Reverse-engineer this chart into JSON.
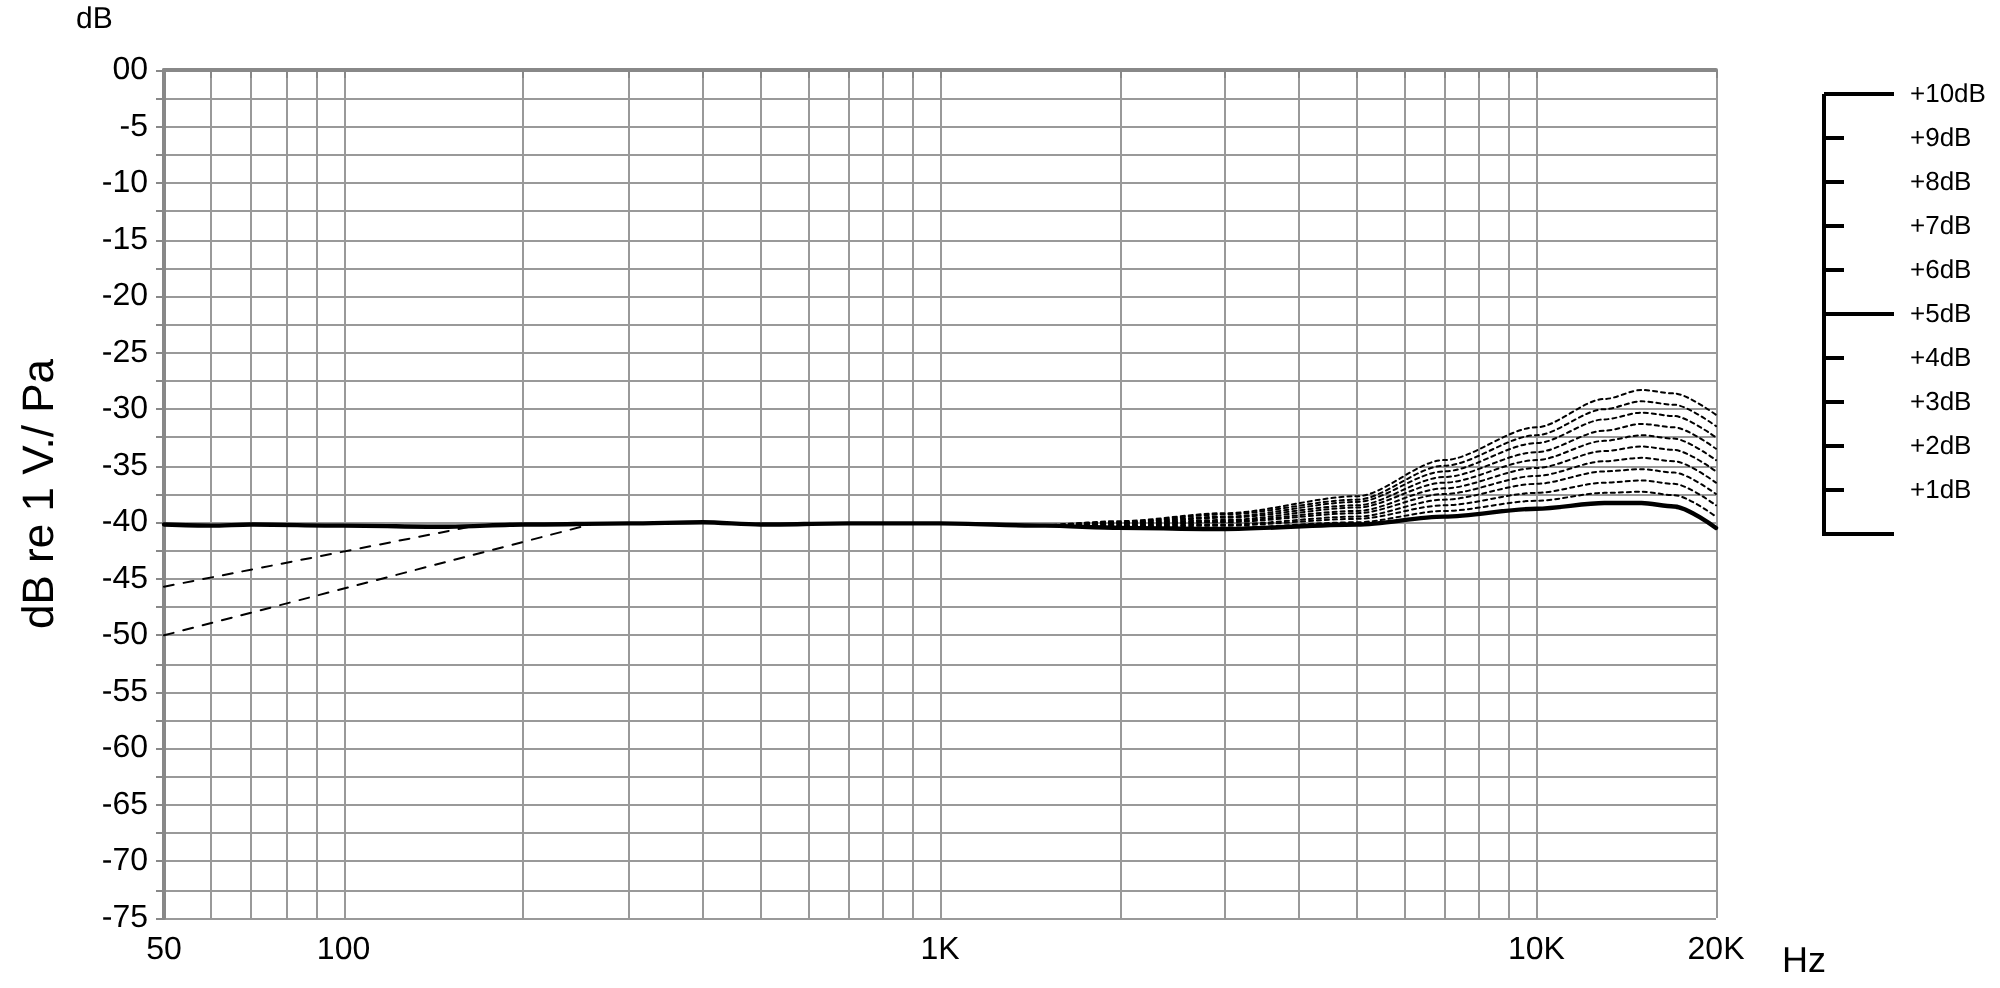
{
  "chart_data": {
    "type": "line",
    "xlabel": "Hz",
    "ylabel": "dB re 1 V./ Pa",
    "annotations": [
      "dB",
      "+10dB",
      "+9dB",
      "+8dB",
      "+7dB",
      "+6dB",
      "+5dB",
      "+4dB",
      "+3dB",
      "+2dB",
      "+1dB"
    ],
    "log": "x",
    "grid": true,
    "marker": "none",
    "xlim": [
      50,
      20000
    ],
    "ylim": [
      -75,
      0
    ],
    "xticks": [
      50,
      {
        "value": 60,
        "label": null
      },
      {
        "value": 70,
        "label": null
      },
      {
        "value": 80,
        "label": null
      },
      {
        "value": 90,
        "label": null
      },
      100,
      {
        "value": 200,
        "label": null
      },
      {
        "value": 300,
        "label": null
      },
      {
        "value": 400,
        "label": null
      },
      {
        "value": 500,
        "label": null
      },
      {
        "value": 600,
        "label": null
      },
      {
        "value": 700,
        "label": null
      },
      {
        "value": 800,
        "label": null
      },
      {
        "value": 900,
        "label": null
      },
      {
        "value": 1000,
        "label": "1K"
      },
      {
        "value": 2000,
        "label": null
      },
      {
        "value": 3000,
        "label": null
      },
      {
        "value": 4000,
        "label": null
      },
      {
        "value": 5000,
        "label": null
      },
      {
        "value": 6000,
        "label": null
      },
      {
        "value": 7000,
        "label": null
      },
      {
        "value": 8000,
        "label": null
      },
      {
        "value": 9000,
        "label": null
      },
      {
        "value": 10000,
        "label": "10K"
      },
      {
        "value": 20000,
        "label": "20K"
      }
    ],
    "yticks": [
      {
        "value": 0,
        "label": "00"
      },
      {
        "value": -2.5,
        "label": null
      },
      -5,
      {
        "value": -7.5,
        "label": null
      },
      -10,
      {
        "value": -12.5,
        "label": null
      },
      -15,
      {
        "value": -17.5,
        "label": null
      },
      -20,
      {
        "value": -22.5,
        "label": null
      },
      -25,
      {
        "value": -27.5,
        "label": null
      },
      -30,
      {
        "value": -32.5,
        "label": null
      },
      -35,
      {
        "value": -37.5,
        "label": null
      },
      -40,
      {
        "value": -42.5,
        "label": null
      },
      -45,
      {
        "value": -47.5,
        "label": null
      },
      -50,
      {
        "value": -52.5,
        "label": null
      },
      -55,
      {
        "value": -57.5,
        "label": null
      },
      -60,
      {
        "value": -62.5,
        "label": null
      },
      -65,
      {
        "value": -67.5,
        "label": null
      },
      -70,
      {
        "value": -72.5,
        "label": null
      },
      -75
    ],
    "series": [
      {
        "color": "#000000",
        "line_style": "solid",
        "x": [
          50,
          60,
          70,
          100,
          150,
          200,
          300,
          400,
          500,
          700,
          1000,
          1500,
          2000,
          3000,
          5000,
          7000,
          10000,
          13000,
          15000,
          17000,
          20000
        ],
        "values": [
          -40.2,
          -40.3,
          -40.2,
          -40.3,
          -40.4,
          -40.2,
          -40.1,
          -40,
          -40.2,
          -40.1,
          -40.1,
          -40.3,
          -40.5,
          -40.6,
          -40.2,
          -39.5,
          -38.8,
          -38.3,
          -38.3,
          -38.6,
          -40.5
        ]
      },
      {
        "color": "#000000",
        "line_style": "dashed",
        "x": [
          50,
          163
        ],
        "values": [
          -45.7,
          -40.4
        ]
      },
      {
        "color": "#000000",
        "line_style": "dashed",
        "x": [
          50,
          259
        ],
        "values": [
          -50,
          -40.2
        ]
      },
      {
        "color": "#000000",
        "line_style": "dotted",
        "x": [
          1500,
          2000,
          3000,
          5000,
          7000,
          10000,
          13000,
          15000,
          17000,
          20000
        ],
        "values": [
          -40.3,
          -40.4,
          -40.5,
          -40.0,
          -39.0,
          -38.1,
          -37.4,
          -37.3,
          -37.6,
          -39.5
        ]
      },
      {
        "color": "#000000",
        "line_style": "dotted",
        "x": [
          1500,
          2000,
          3000,
          5000,
          7000,
          10000,
          13000,
          15000,
          17000,
          20000
        ],
        "values": [
          -40.3,
          -40.4,
          -40.3,
          -39.7,
          -38.5,
          -37.4,
          -36.5,
          -36.3,
          -36.6,
          -38.5
        ]
      },
      {
        "color": "#000000",
        "line_style": "dotted",
        "x": [
          1500,
          2000,
          3000,
          5000,
          7000,
          10000,
          13000,
          15000,
          17000,
          20000
        ],
        "values": [
          -40.3,
          -40.3,
          -40.2,
          -39.5,
          -38.0,
          -36.6,
          -35.5,
          -35.3,
          -35.6,
          -37.5
        ]
      },
      {
        "color": "#000000",
        "line_style": "dotted",
        "x": [
          1500,
          2000,
          3000,
          5000,
          7000,
          10000,
          13000,
          15000,
          17000,
          20000
        ],
        "values": [
          -40.3,
          -40.3,
          -40.0,
          -39.2,
          -37.5,
          -35.9,
          -34.6,
          -34.3,
          -34.6,
          -36.5
        ]
      },
      {
        "color": "#000000",
        "line_style": "dotted",
        "x": [
          1500,
          2000,
          3000,
          5000,
          7000,
          10000,
          13000,
          15000,
          17000,
          20000
        ],
        "values": [
          -40.3,
          -40.2,
          -39.9,
          -39.0,
          -37.0,
          -35.2,
          -33.7,
          -33.3,
          -33.6,
          -35.5
        ]
      },
      {
        "color": "#000000",
        "line_style": "dotted",
        "x": [
          1500,
          2000,
          3000,
          5000,
          7000,
          10000,
          13000,
          15000,
          17000,
          20000
        ],
        "values": [
          -40.3,
          -40.1,
          -39.8,
          -38.7,
          -36.5,
          -34.5,
          -32.8,
          -32.3,
          -32.6,
          -34.5
        ]
      },
      {
        "color": "#000000",
        "line_style": "dotted",
        "x": [
          1500,
          2000,
          3000,
          5000,
          7000,
          10000,
          13000,
          15000,
          17000,
          20000
        ],
        "values": [
          -40.3,
          -40.1,
          -39.6,
          -38.5,
          -36.0,
          -33.8,
          -31.9,
          -31.3,
          -31.6,
          -33.5
        ]
      },
      {
        "color": "#000000",
        "line_style": "dotted",
        "x": [
          1500,
          2000,
          3000,
          5000,
          7000,
          10000,
          13000,
          15000,
          17000,
          20000
        ],
        "values": [
          -40.3,
          -40.0,
          -39.5,
          -38.2,
          -35.5,
          -33.0,
          -30.9,
          -30.3,
          -30.6,
          -32.5
        ]
      },
      {
        "color": "#000000",
        "line_style": "dotted",
        "x": [
          1500,
          2000,
          3000,
          5000,
          7000,
          10000,
          13000,
          15000,
          17000,
          20000
        ],
        "values": [
          -40.3,
          -40.0,
          -39.3,
          -38.0,
          -35.0,
          -32.3,
          -30.0,
          -29.3,
          -29.6,
          -31.5
        ]
      },
      {
        "color": "#000000",
        "line_style": "dotted",
        "x": [
          1500,
          2000,
          3000,
          5000,
          7000,
          10000,
          13000,
          15000,
          17000,
          20000
        ],
        "values": [
          -40.3,
          -39.9,
          -39.2,
          -37.7,
          -34.5,
          -31.6,
          -29.1,
          -28.3,
          -28.6,
          -30.5
        ]
      }
    ]
  }
}
